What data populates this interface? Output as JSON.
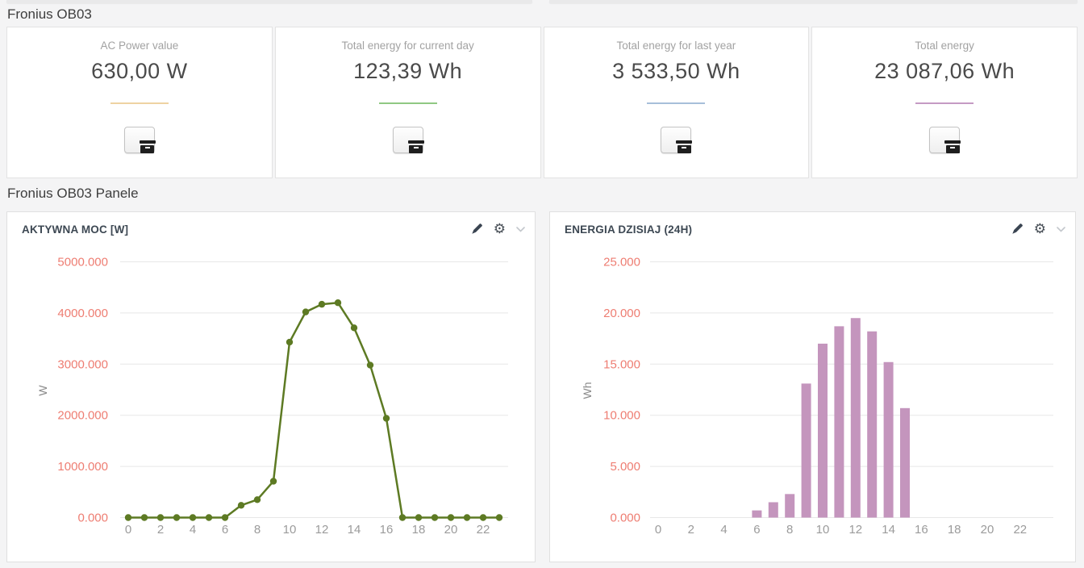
{
  "titles": {
    "section1": "Fronius OB03",
    "section2": "Fronius OB03 Panele"
  },
  "stat_cards": [
    {
      "label": "AC Power value",
      "value": "630,00 W",
      "accent_color": "#eed3a2",
      "action_icon": "archive-box-icon"
    },
    {
      "label": "Total energy for current day",
      "value": "123,39 Wh",
      "accent_color": "#90c883",
      "action_icon": "archive-box-icon"
    },
    {
      "label": "Total energy for last year",
      "value": "3 533,50 Wh",
      "accent_color": "#a7bfd9",
      "action_icon": "archive-box-icon"
    },
    {
      "label": "Total energy",
      "value": "23 087,06 Wh",
      "accent_color": "#c59ac4",
      "action_icon": "archive-box-icon"
    }
  ],
  "panel_tools": {
    "edit_icon": "pencil-icon",
    "settings_icon": "gear-icon",
    "collapse_icon": "chevron-down-icon"
  },
  "colors": {
    "value_axis_label": "#ee7d72",
    "category_axis_label": "#9b9b9b",
    "grid_line": "#e7e7e7",
    "axis_unit_label": "#8b8b8b",
    "line_series": "#5d7a23",
    "bar_series": "#c495bd"
  },
  "chart_data": [
    {
      "type": "line",
      "title": "AKTYWNA MOC [W]",
      "ylabel": "W",
      "xlabel": "",
      "x": [
        0,
        1,
        2,
        3,
        4,
        5,
        6,
        7,
        8,
        9,
        10,
        11,
        12,
        13,
        14,
        15,
        16,
        17,
        18,
        19,
        20,
        21,
        22,
        23
      ],
      "values": [
        0,
        0,
        0,
        0,
        0,
        0,
        0,
        240,
        350,
        710,
        3430,
        4020,
        4170,
        4200,
        3710,
        2980,
        1940,
        0,
        0,
        0,
        0,
        0,
        0,
        0
      ],
      "ylim": [
        0,
        5000
      ],
      "ytick_labels": [
        "0.000",
        "1000.000",
        "2000.000",
        "3000.000",
        "4000.000",
        "5000.000"
      ],
      "xtick_labels": [
        "0",
        "2",
        "4",
        "6",
        "8",
        "10",
        "12",
        "14",
        "16",
        "18",
        "20",
        "22"
      ],
      "grid": "horizontal only",
      "legend": "none",
      "marker": "filled circle"
    },
    {
      "type": "bar",
      "title": "ENERGIA DZISIAJ (24H)",
      "ylabel": "Wh",
      "xlabel": "",
      "x": [
        0,
        1,
        2,
        3,
        4,
        5,
        6,
        7,
        8,
        9,
        10,
        11,
        12,
        13,
        14,
        15,
        16,
        17,
        18,
        19,
        20,
        21,
        22,
        23
      ],
      "values": [
        0,
        0,
        0,
        0,
        0,
        0,
        0.7,
        1.5,
        2.3,
        13.1,
        17.0,
        18.7,
        19.5,
        18.2,
        15.2,
        10.7,
        0,
        0,
        0,
        0,
        0,
        0,
        0,
        0
      ],
      "ylim": [
        0,
        25
      ],
      "ytick_labels": [
        "0.000",
        "5.000",
        "10.000",
        "15.000",
        "20.000",
        "25.000"
      ],
      "xtick_labels": [
        "0",
        "2",
        "4",
        "6",
        "8",
        "10",
        "12",
        "14",
        "16",
        "18",
        "20",
        "22"
      ],
      "grid": "horizontal only",
      "legend": "none"
    }
  ]
}
